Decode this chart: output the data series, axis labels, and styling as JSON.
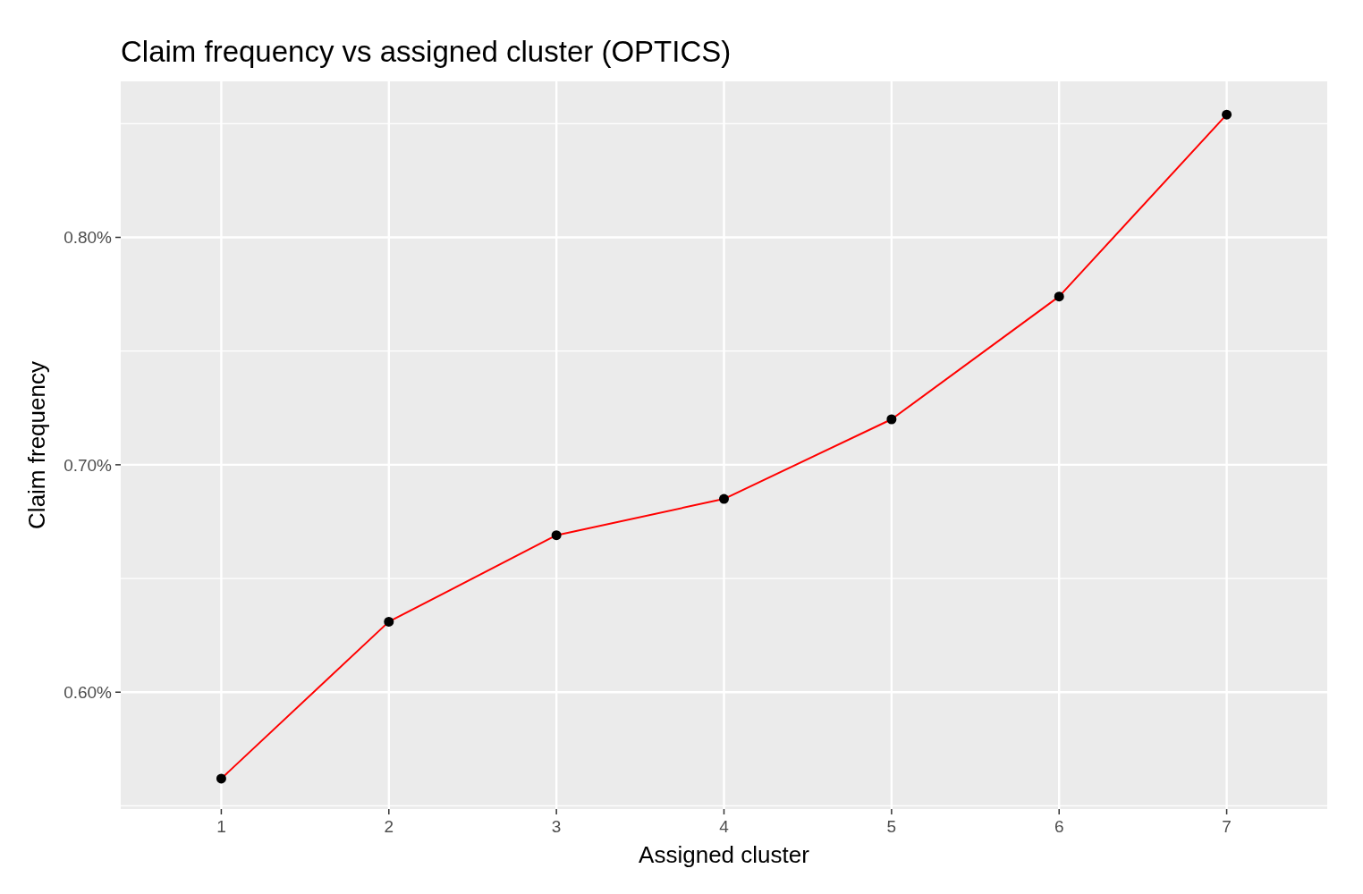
{
  "chart_data": {
    "type": "line",
    "title": "Claim frequency vs assigned cluster (OPTICS)",
    "xlabel": "Assigned cluster",
    "ylabel": "Claim frequency",
    "x": [
      1,
      2,
      3,
      4,
      5,
      6,
      7
    ],
    "series": [
      {
        "color": "#ff0000",
        "values": [
          0.562,
          0.631,
          0.669,
          0.685,
          0.72,
          0.774,
          0.854
        ]
      },
      {
        "type": "scatter",
        "color": "#000000",
        "marker": "circle",
        "values": [
          0.562,
          0.631,
          0.669,
          0.685,
          0.72,
          0.774,
          0.854
        ]
      }
    ],
    "xlim": [
      0.4,
      7.6
    ],
    "xticks": [
      1,
      2,
      3,
      4,
      5,
      6,
      7
    ],
    "ylim": [
      0.5486,
      0.8686
    ],
    "yticks": [
      {
        "value": 0.55,
        "label": null
      },
      {
        "value": 0.6,
        "label": "0.60%"
      },
      {
        "value": 0.65,
        "label": null
      },
      {
        "value": 0.7,
        "label": "0.70%"
      },
      {
        "value": 0.75,
        "label": null
      },
      {
        "value": 0.8,
        "label": "0.80%"
      },
      {
        "value": 0.85,
        "label": null
      }
    ],
    "grid": true
  }
}
